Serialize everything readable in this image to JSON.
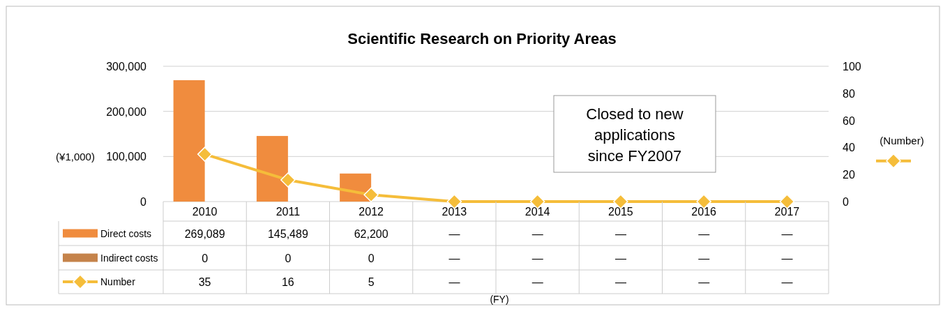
{
  "chart_data": {
    "type": "bar",
    "title": "Scientific Research on Priority Areas",
    "ylabel": "(¥1,000)",
    "y2label": "(Number)",
    "categories": [
      "2010",
      "2011",
      "2012",
      "2013",
      "2014",
      "2015",
      "2016",
      "2017"
    ],
    "series": [
      {
        "name": "Direct costs",
        "color": "#f08c3e",
        "values": [
          269089,
          145489,
          62200,
          null,
          null,
          null,
          null,
          null
        ],
        "value_labels": [
          "269,089",
          "145,489",
          "62,200",
          "—",
          "—",
          "—",
          "—",
          "—"
        ]
      },
      {
        "name": "Indirect costs",
        "color": "#c5834b",
        "values": [
          0,
          0,
          0,
          null,
          null,
          null,
          null,
          null
        ],
        "value_labels": [
          "0",
          "0",
          "0",
          "—",
          "—",
          "—",
          "—",
          "—"
        ]
      },
      {
        "name": "Number",
        "type": "line",
        "axis": "y2",
        "color": "#f5bd3a",
        "marker": "diamond",
        "values": [
          35,
          16,
          5,
          0,
          0,
          0,
          0,
          0
        ],
        "value_labels": [
          "35",
          "16",
          "5",
          "—",
          "—",
          "—",
          "—",
          "—"
        ]
      }
    ],
    "ylim": [
      0,
      300000
    ],
    "yticks": [
      {
        "value": 0,
        "label": "0"
      },
      {
        "value": 100000,
        "label": "100,000"
      },
      {
        "value": 200000,
        "label": "200,000"
      },
      {
        "value": 300000,
        "label": "300,000"
      }
    ],
    "y2lim": [
      0,
      100
    ],
    "y2ticks": [
      0,
      20,
      40,
      60,
      80,
      100
    ],
    "grid": "y",
    "legend": "bottom left",
    "annotations": [
      "Closed to new applications since FY2007",
      "(FY)"
    ]
  }
}
